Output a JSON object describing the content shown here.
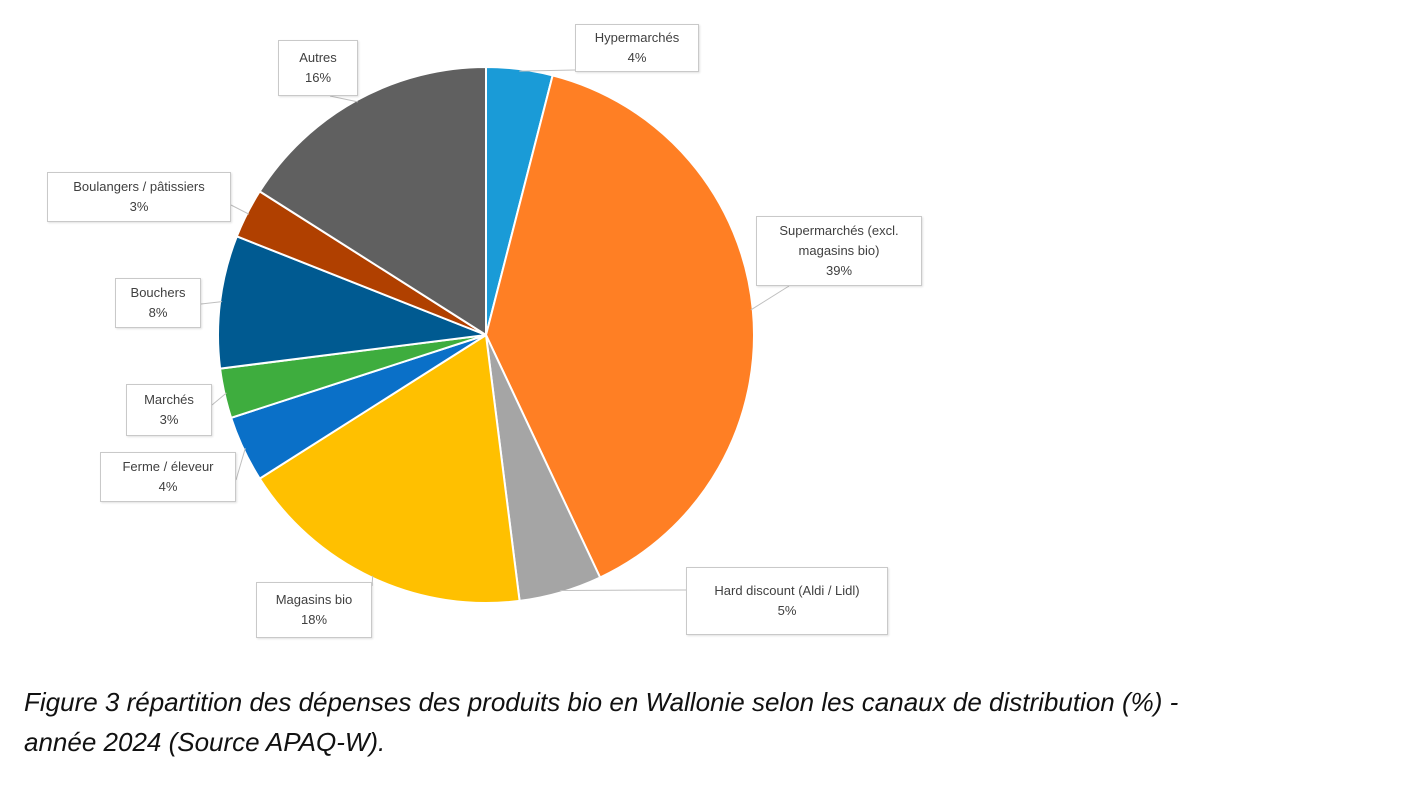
{
  "chart_data": {
    "type": "pie",
    "title": "",
    "slices": [
      {
        "label": "Hypermarchés",
        "label_lines": [
          "Hypermarchés"
        ],
        "value": 4,
        "value_label": "4%",
        "color": "#1a9bd7"
      },
      {
        "label": "Supermarchés (excl. magasins bio)",
        "label_lines": [
          "Supermarchés (excl.",
          "magasins bio)"
        ],
        "value": 39,
        "value_label": "39%",
        "color": "#ff7f24"
      },
      {
        "label": "Hard discount (Aldi / Lidl)",
        "label_lines": [
          "Hard discount (Aldi / Lidl)"
        ],
        "value": 5,
        "value_label": "5%",
        "color": "#a5a5a5"
      },
      {
        "label": "Magasins bio",
        "label_lines": [
          "Magasins bio"
        ],
        "value": 18,
        "value_label": "18%",
        "color": "#ffc000"
      },
      {
        "label": "Ferme / éleveur",
        "label_lines": [
          "Ferme / éleveur"
        ],
        "value": 4,
        "value_label": "4%",
        "color": "#0a70c8"
      },
      {
        "label": "Marchés",
        "label_lines": [
          "Marchés"
        ],
        "value": 3,
        "value_label": "3%",
        "color": "#3ead3e"
      },
      {
        "label": "Bouchers",
        "label_lines": [
          "Bouchers"
        ],
        "value": 8,
        "value_label": "8%",
        "color": "#005a91"
      },
      {
        "label": "Boulangers / pâtissiers",
        "label_lines": [
          "Boulangers / pâtissiers"
        ],
        "value": 3,
        "value_label": "3%",
        "color": "#b04000"
      },
      {
        "label": "Autres",
        "label_lines": [
          "Autres"
        ],
        "value": 16,
        "value_label": "16%",
        "color": "#606060"
      }
    ],
    "legend": "none",
    "data_labels": "callout boxes with leader lines"
  },
  "caption": {
    "line1": "Figure 3 répartition des dépenses des produits bio en Wallonie selon les canaux de distribution (%) -",
    "line2": "année 2024 (Source APAQ-W)."
  }
}
